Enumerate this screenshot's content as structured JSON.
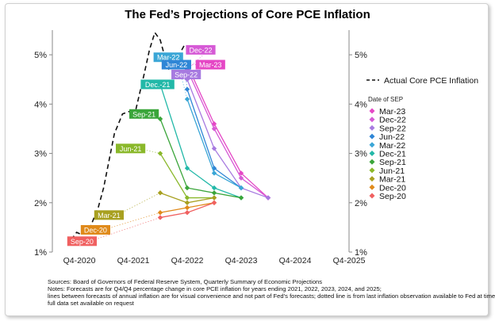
{
  "chart_data": {
    "type": "line",
    "title": "The Fed’s Projections of Core PCE Inflation",
    "x_ticks": [
      "Q4-2020",
      "Q4-2021",
      "Q4-2022",
      "Q4-2023",
      "Q4-2024",
      "Q4-2025"
    ],
    "y_ticks": [
      "1%",
      "2%",
      "3%",
      "4%",
      "5%"
    ],
    "ylim": [
      1,
      5.5
    ],
    "actual": {
      "name": "Actual Core PCE Inflation",
      "points": [
        [
          0.35,
          1.25
        ],
        [
          0.45,
          1.4
        ],
        [
          0.55,
          1.35
        ],
        [
          0.7,
          1.5
        ],
        [
          0.85,
          1.9
        ],
        [
          0.95,
          2.3
        ],
        [
          1.15,
          3.4
        ],
        [
          1.3,
          3.8
        ],
        [
          1.55,
          3.9
        ],
        [
          1.7,
          4.6
        ],
        [
          1.8,
          5.1
        ],
        [
          1.9,
          5.45
        ],
        [
          2.0,
          5.3
        ],
        [
          2.15,
          4.7
        ],
        [
          2.3,
          4.9
        ],
        [
          2.45,
          5.2
        ],
        [
          2.6,
          5.1
        ]
      ]
    },
    "legend_title": "Date of SEP",
    "series": [
      {
        "name": "Mar-23",
        "color": "#e547c5",
        "points": [
          [
            2.5,
            4.8
          ],
          [
            3.0,
            3.6
          ],
          [
            3.5,
            2.6
          ],
          [
            4.0,
            2.1
          ]
        ]
      },
      {
        "name": "Dec-22",
        "color": "#d65ad6",
        "points": [
          [
            2.5,
            4.7
          ],
          [
            3.0,
            3.5
          ],
          [
            3.5,
            2.5
          ],
          [
            4.0,
            2.1
          ]
        ]
      },
      {
        "name": "Sep-22",
        "color": "#a77ae0",
        "points": [
          [
            2.5,
            4.5
          ],
          [
            3.0,
            3.1
          ],
          [
            3.5,
            2.3
          ],
          [
            4.0,
            2.1
          ]
        ]
      },
      {
        "name": "Jun-22",
        "color": "#2f86d6",
        "points": [
          [
            2.5,
            4.3
          ],
          [
            3.0,
            2.7
          ],
          [
            3.5,
            2.3
          ]
        ]
      },
      {
        "name": "Mar-22",
        "color": "#3aa6d6",
        "points": [
          [
            2.5,
            4.1
          ],
          [
            3.0,
            2.6
          ],
          [
            3.5,
            2.3
          ]
        ]
      },
      {
        "name": "Dec-21",
        "color": "#22b8a8",
        "points": [
          [
            2.0,
            4.4
          ],
          [
            2.5,
            2.7
          ],
          [
            3.0,
            2.3
          ],
          [
            3.5,
            2.1
          ]
        ]
      },
      {
        "name": "Sep-21",
        "color": "#3aa53a",
        "points": [
          [
            2.0,
            3.7
          ],
          [
            2.5,
            2.3
          ],
          [
            3.0,
            2.2
          ],
          [
            3.5,
            2.1
          ]
        ]
      },
      {
        "name": "Jun-21",
        "color": "#8ab82a",
        "points": [
          [
            2.0,
            3.0
          ],
          [
            2.5,
            2.1
          ],
          [
            3.0,
            2.1
          ]
        ]
      },
      {
        "name": "Mar-21",
        "color": "#a8a020",
        "points": [
          [
            2.0,
            2.2
          ],
          [
            2.5,
            2.0
          ],
          [
            3.0,
            2.1
          ]
        ]
      },
      {
        "name": "Dec-20",
        "color": "#e08a1a",
        "points": [
          [
            2.0,
            1.8
          ],
          [
            2.5,
            1.9
          ],
          [
            3.0,
            2.0
          ]
        ]
      },
      {
        "name": "Sep-20",
        "color": "#f06060",
        "points": [
          [
            2.0,
            1.7
          ],
          [
            2.5,
            1.8
          ],
          [
            3.0,
            2.0
          ]
        ]
      }
    ],
    "callouts": [
      {
        "label": "Sep-20",
        "color": "#f06060",
        "x": 0.55,
        "y": 1.22
      },
      {
        "label": "Dec-20",
        "color": "#e08a1a",
        "x": 0.8,
        "y": 1.45
      },
      {
        "label": "Mar-21",
        "color": "#a8a020",
        "x": 1.05,
        "y": 1.75
      },
      {
        "label": "Jun-21",
        "color": "#8ab82a",
        "x": 1.45,
        "y": 3.1
      },
      {
        "label": "Sep-21",
        "color": "#3aa53a",
        "x": 1.7,
        "y": 3.8
      },
      {
        "label": "Dec.-21",
        "color": "#22b8a8",
        "x": 1.95,
        "y": 4.4
      },
      {
        "label": "Mar-22",
        "color": "#3aa6d6",
        "x": 2.15,
        "y": 4.95
      },
      {
        "label": "Jun-22",
        "color": "#2f86d6",
        "x": 2.3,
        "y": 4.8
      },
      {
        "label": "Sep-22",
        "color": "#a77ae0",
        "x": 2.48,
        "y": 4.6
      },
      {
        "label": "Dec-22",
        "color": "#d65ad6",
        "x": 2.75,
        "y": 5.1
      },
      {
        "label": "Mar-23",
        "color": "#e547c5",
        "x": 2.93,
        "y": 4.8
      }
    ]
  },
  "notes": {
    "line1": "Sources:  Board of Governors of Federal Reserve System, Quarterly Summary of Economic Projections",
    "line2": "Notes: Forecasts are for Q4/Q4 percentage change in core PCE inflation for years ending 2021, 2022, 2023, 2024, and 2025;",
    "line3": "lines between forecasts of annual inflation are for visual convenience and not part of Fed’s forecasts; dotted line is from last inflation observation available to Fed at time of SEP;",
    "line4": "full data set available on request"
  }
}
